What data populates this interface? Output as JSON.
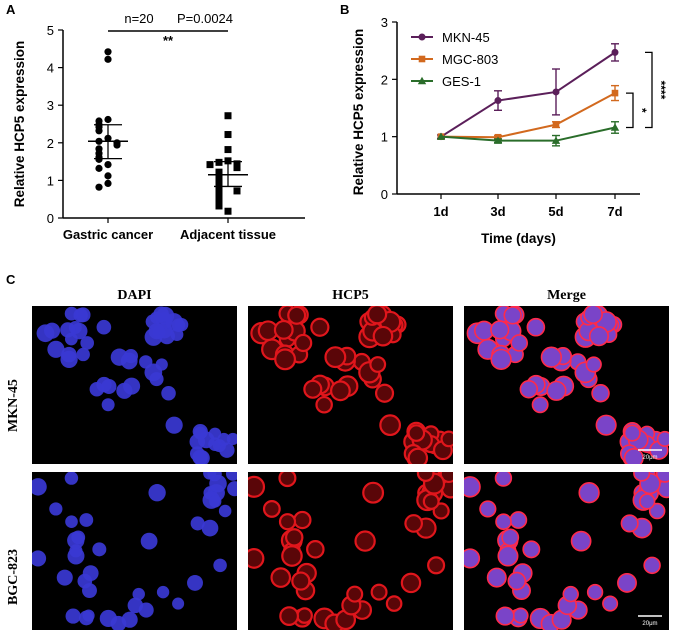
{
  "panels": {
    "a": "A",
    "b": "B",
    "c": "C"
  },
  "chart_data": [
    {
      "type": "scatter",
      "panel": "A",
      "ylabel": "Relative HCP5 expression",
      "categories": [
        "Gastric cancer",
        "Adjacent tissue"
      ],
      "ylim": [
        0,
        5
      ],
      "yticks": [
        0,
        1,
        2,
        3,
        4,
        5
      ],
      "groups": [
        {
          "name": "Gastric cancer",
          "marker": "circle",
          "values": [
            4.42,
            4.22,
            2.62,
            2.58,
            2.48,
            2.42,
            2.32,
            2.12,
            2.04,
            2.0,
            1.94,
            1.84,
            1.72,
            1.62,
            1.56,
            1.42,
            1.32,
            1.12,
            0.92,
            0.82
          ],
          "mean": 2.04,
          "error_low": 1.58,
          "error_high": 2.48
        },
        {
          "name": "Adjacent tissue",
          "marker": "square",
          "values": [
            2.72,
            2.22,
            1.82,
            1.52,
            1.48,
            1.44,
            1.42,
            1.34,
            1.22,
            1.12,
            1.02,
            0.92,
            0.82,
            0.78,
            0.72,
            0.62,
            0.52,
            0.42,
            0.32,
            0.18
          ],
          "mean": 1.15,
          "error_low": 0.84,
          "error_high": 1.5
        }
      ],
      "annotations": {
        "n": "n=20",
        "p": "P=0.0024",
        "sig": "**"
      }
    },
    {
      "type": "line",
      "panel": "B",
      "xlabel": "Time (days)",
      "ylabel": "Relative HCP5 expression",
      "categories": [
        "1d",
        "3d",
        "5d",
        "7d"
      ],
      "ylim": [
        0,
        3
      ],
      "yticks": [
        0,
        1,
        2,
        3
      ],
      "series": [
        {
          "name": "MKN-45",
          "color": "#5b1f5a",
          "marker": "circle",
          "values": [
            1.0,
            1.63,
            1.78,
            2.47
          ],
          "errors": [
            0.03,
            0.17,
            0.4,
            0.15
          ]
        },
        {
          "name": "MGC-803",
          "color": "#d2691e",
          "marker": "square",
          "values": [
            1.0,
            0.99,
            1.21,
            1.76
          ],
          "errors": [
            0.02,
            0.03,
            0.05,
            0.13
          ]
        },
        {
          "name": "GES-1",
          "color": "#2a6d2a",
          "marker": "triangle",
          "values": [
            1.0,
            0.93,
            0.93,
            1.16
          ],
          "errors": [
            0.02,
            0.03,
            0.09,
            0.1
          ]
        }
      ],
      "significance": [
        {
          "label": "*",
          "from": "MGC-803",
          "to": "GES-1"
        },
        {
          "label": "****",
          "from": "MKN-45",
          "to": "GES-1"
        }
      ]
    }
  ],
  "figure_c": {
    "columns": [
      "DAPI",
      "HCP5",
      "Merge"
    ],
    "rows": [
      "MKN-45",
      "BGC-823"
    ],
    "scale_label": "20μm",
    "colors": {
      "dapi": "#3a38d4",
      "hcp5": "#e0161c",
      "merge_fill": "#7a44c8",
      "merge_rim": "#ff2a4a"
    }
  }
}
